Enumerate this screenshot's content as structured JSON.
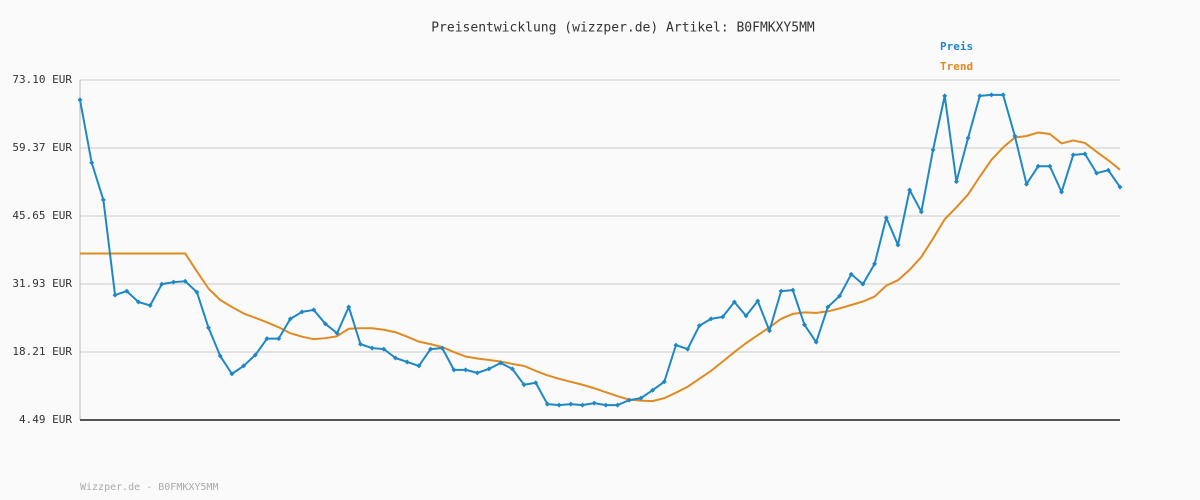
{
  "chart_data": {
    "type": "line",
    "title": "Preisentwicklung (wizzper.de) Artikel: B0FMKXY5MM",
    "footer": "Wizzper.de - B0FMKXY5MM",
    "ylim": [
      4.49,
      73.1
    ],
    "yticks": [
      {
        "value": 4.49,
        "label": "4.49 EUR"
      },
      {
        "value": 18.21,
        "label": "18.21 EUR"
      },
      {
        "value": 31.93,
        "label": "31.93 EUR"
      },
      {
        "value": 45.65,
        "label": "45.65 EUR"
      },
      {
        "value": 59.37,
        "label": "59.37 EUR"
      },
      {
        "value": 73.1,
        "label": "73.10 EUR"
      }
    ],
    "grid": true,
    "legend": "top-right",
    "series": [
      {
        "name": "Preis",
        "color": "#1f88c4",
        "markers": true,
        "values": [
          69.1,
          56.4,
          48.9,
          29.7,
          30.5,
          28.3,
          27.6,
          31.9,
          32.3,
          32.5,
          30.3,
          23.1,
          17.4,
          13.8,
          15.4,
          17.6,
          20.9,
          20.9,
          24.9,
          26.3,
          26.7,
          23.9,
          22.0,
          27.3,
          19.8,
          19.0,
          18.8,
          17.0,
          16.2,
          15.4,
          18.8,
          19.0,
          14.6,
          14.6,
          14.0,
          14.8,
          16.0,
          14.8,
          11.6,
          12.0,
          7.7,
          7.5,
          7.7,
          7.5,
          7.9,
          7.5,
          7.5,
          8.5,
          8.9,
          10.5,
          12.2,
          19.6,
          18.8,
          23.5,
          24.9,
          25.3,
          28.3,
          25.5,
          28.5,
          22.5,
          30.5,
          30.7,
          23.7,
          20.2,
          27.3,
          29.5,
          33.9,
          31.9,
          36.0,
          45.3,
          39.8,
          50.9,
          46.5,
          59.0,
          69.9,
          52.6,
          61.4,
          69.9,
          70.1,
          70.1,
          61.8,
          52.1,
          55.7,
          55.7,
          50.5,
          58.0,
          58.2,
          54.3,
          54.9,
          51.5
        ]
      },
      {
        "name": "Trend",
        "color": "#e08a22",
        "markers": false,
        "values": [
          38.1,
          38.1,
          38.1,
          38.1,
          38.1,
          38.1,
          38.1,
          38.1,
          38.1,
          38.1,
          34.5,
          31.0,
          28.7,
          27.3,
          26.0,
          25.1,
          24.2,
          23.2,
          22.0,
          21.3,
          20.8,
          21.0,
          21.4,
          22.9,
          23.0,
          23.0,
          22.7,
          22.2,
          21.3,
          20.3,
          19.8,
          19.2,
          18.2,
          17.3,
          16.9,
          16.6,
          16.3,
          15.8,
          15.4,
          14.4,
          13.5,
          12.8,
          12.2,
          11.6,
          10.9,
          10.1,
          9.3,
          8.6,
          8.4,
          8.3,
          8.9,
          10.0,
          11.2,
          12.8,
          14.4,
          16.3,
          18.2,
          20.0,
          21.6,
          23.2,
          24.9,
          25.9,
          26.2,
          26.1,
          26.4,
          27.0,
          27.7,
          28.4,
          29.4,
          31.6,
          32.7,
          34.8,
          37.4,
          41.1,
          45.0,
          47.4,
          50.0,
          53.6,
          57.0,
          59.5,
          61.5,
          61.8,
          62.5,
          62.2,
          60.3,
          60.9,
          60.4,
          58.6,
          56.9,
          55.0
        ]
      }
    ]
  }
}
